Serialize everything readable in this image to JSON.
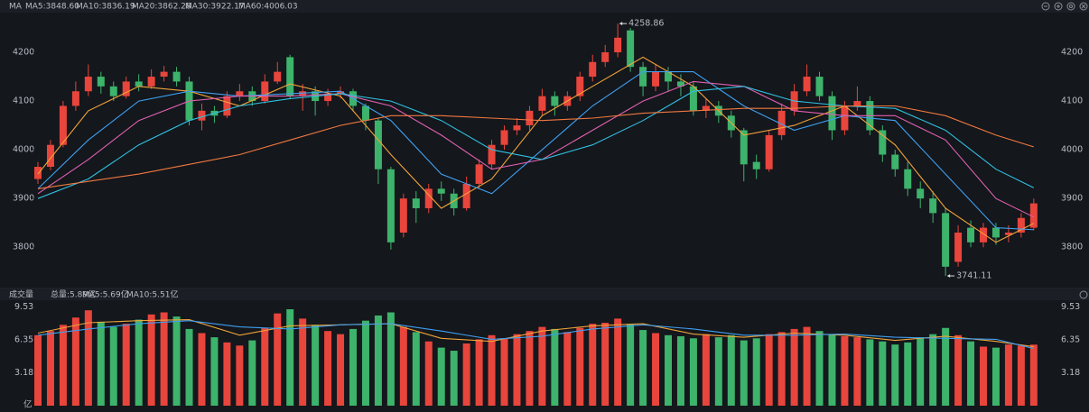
{
  "chart_data": {
    "type": "candlestick",
    "title": "MA",
    "up_color": "#e8453c",
    "down_color": "#3db36b",
    "ylim": [
      3719,
      4274
    ],
    "yticks": [
      3800,
      3900,
      4000,
      4100,
      4200
    ],
    "open": [
      3940,
      3965,
      4010,
      4090,
      4120,
      4150,
      4130,
      4110,
      4140,
      4130,
      4150,
      4160,
      4140,
      4060,
      4080,
      4070,
      4110,
      4120,
      4100,
      4140,
      4190,
      4110,
      4120,
      4100,
      4115,
      4120,
      4090,
      4060,
      3960,
      3830,
      3900,
      3880,
      3920,
      3910,
      3880,
      3930,
      3970,
      4010,
      4040,
      4050,
      4080,
      4110,
      4090,
      4110,
      4150,
      4180,
      4200,
      4245,
      4170,
      4130,
      4160,
      4140,
      4130,
      4080,
      4090,
      4070,
      4040,
      3975,
      3960,
      4030,
      4080,
      4120,
      4150,
      4110,
      4040,
      4090,
      4100,
      4040,
      3990,
      3960,
      3920,
      3900,
      3870,
      3770,
      3840,
      3810,
      3840,
      3825,
      3830,
      3840
    ],
    "high": [
      3975,
      4020,
      4100,
      4140,
      4175,
      4160,
      4140,
      4150,
      4155,
      4165,
      4172,
      4170,
      4150,
      4095,
      4090,
      4120,
      4135,
      4130,
      4155,
      4180,
      4195,
      4135,
      4130,
      4125,
      4130,
      4125,
      4095,
      4065,
      3965,
      3910,
      3915,
      3930,
      3935,
      3920,
      3945,
      3980,
      4020,
      4050,
      4065,
      4090,
      4125,
      4120,
      4120,
      4160,
      4195,
      4215,
      4258.86,
      4250,
      4180,
      4175,
      4170,
      4155,
      4140,
      4105,
      4100,
      4080,
      4045,
      3990,
      4040,
      4095,
      4135,
      4175,
      4160,
      4120,
      4100,
      4130,
      4110,
      4050,
      4000,
      3975,
      3935,
      3915,
      3880,
      3845,
      3855,
      3850,
      3850,
      3845,
      3870,
      3900
    ],
    "low": [
      3930,
      3958,
      4005,
      4080,
      4110,
      4115,
      4100,
      4105,
      4120,
      4125,
      4140,
      4130,
      4050,
      4040,
      4055,
      4065,
      4100,
      4090,
      4095,
      4135,
      4105,
      4080,
      4070,
      4090,
      4105,
      4080,
      4040,
      3930,
      3795,
      3820,
      3850,
      3870,
      3895,
      3865,
      3875,
      3920,
      3960,
      4000,
      4030,
      4040,
      4070,
      4070,
      4080,
      4100,
      4140,
      4170,
      4190,
      4160,
      4110,
      4120,
      4120,
      4110,
      4070,
      4065,
      4055,
      4025,
      3935,
      3940,
      3955,
      4020,
      4070,
      4110,
      4100,
      4020,
      4030,
      4080,
      4030,
      3975,
      3945,
      3905,
      3880,
      3850,
      3741.11,
      3760,
      3800,
      3800,
      3805,
      3810,
      3820,
      3835
    ],
    "close": [
      3965,
      4010,
      4090,
      4120,
      4150,
      4130,
      4110,
      4140,
      4130,
      4150,
      4160,
      4140,
      4060,
      4080,
      4070,
      4110,
      4120,
      4100,
      4140,
      4160,
      4110,
      4120,
      4100,
      4115,
      4120,
      4090,
      4060,
      3960,
      3810,
      3900,
      3880,
      3920,
      3910,
      3880,
      3930,
      3970,
      4010,
      4040,
      4050,
      4080,
      4110,
      4090,
      4110,
      4150,
      4180,
      4200,
      4230,
      4170,
      4130,
      4160,
      4140,
      4130,
      4080,
      4090,
      4070,
      4040,
      3970,
      3960,
      4030,
      4080,
      4120,
      4150,
      4110,
      4040,
      4090,
      4100,
      4040,
      3990,
      3960,
      3920,
      3900,
      3870,
      3760,
      3830,
      3810,
      3840,
      3820,
      3830,
      3860,
      3890
    ],
    "overlay_x": [
      0,
      4,
      8,
      12,
      16,
      20,
      24,
      28,
      32,
      36,
      40,
      44,
      48,
      52,
      56,
      60,
      64,
      68,
      72,
      76,
      79
    ],
    "overlays": [
      {
        "name": "MA5:3848.60",
        "color": "#f0a33a",
        "values": [
          3950,
          4080,
          4130,
          4120,
          4090,
          4135,
          4110,
          3990,
          3880,
          3940,
          4070,
          4130,
          4190,
          4130,
          4030,
          4050,
          4090,
          4010,
          3880,
          3810,
          3849
        ]
      },
      {
        "name": "MA10:3836.19",
        "color": "#3f9ff0",
        "values": [
          3920,
          4020,
          4100,
          4120,
          4110,
          4115,
          4120,
          4060,
          3950,
          3910,
          4000,
          4090,
          4160,
          4160,
          4090,
          4040,
          4070,
          4060,
          3950,
          3840,
          3836
        ]
      },
      {
        "name": "MA20:3862.28",
        "color": "#e060b0",
        "values": [
          3910,
          3980,
          4060,
          4100,
          4110,
          4110,
          4115,
          4090,
          4030,
          3960,
          3980,
          4040,
          4100,
          4140,
          4130,
          4080,
          4070,
          4070,
          4020,
          3900,
          3862
        ]
      },
      {
        "name": "MA30:3922.17",
        "color": "#30c0e0",
        "values": [
          3900,
          3940,
          4010,
          4060,
          4090,
          4105,
          4115,
          4100,
          4060,
          4000,
          3980,
          4010,
          4060,
          4120,
          4130,
          4100,
          4090,
          4085,
          4040,
          3960,
          3922
        ]
      },
      {
        "name": "MA60:4006.03",
        "color": "#f07840",
        "values": [
          3920,
          3935,
          3950,
          3970,
          3990,
          4020,
          4050,
          4070,
          4070,
          4065,
          4060,
          4065,
          4075,
          4080,
          4085,
          4085,
          4090,
          4090,
          4070,
          4030,
          4006
        ]
      }
    ],
    "volume": {
      "title": "成交量",
      "total_label": "总量:5.89亿",
      "total_color": "#e8453c",
      "unit": "亿",
      "ylim": [
        0,
        10
      ],
      "yticks": [
        9.53,
        6.35,
        3.18
      ],
      "values": [
        6.8,
        7.2,
        7.8,
        8.5,
        9.2,
        8.1,
        7.6,
        7.9,
        8.3,
        8.8,
        9.0,
        8.6,
        7.4,
        7.0,
        6.6,
        6.1,
        5.8,
        6.3,
        7.5,
        8.9,
        9.3,
        8.4,
        7.8,
        7.2,
        6.9,
        7.4,
        8.2,
        8.7,
        9.0,
        7.6,
        7.1,
        6.2,
        5.6,
        5.3,
        6.0,
        6.4,
        6.8,
        6.5,
        6.9,
        7.2,
        7.6,
        7.4,
        7.1,
        7.5,
        7.9,
        8.0,
        8.4,
        7.9,
        7.3,
        7.0,
        6.8,
        6.7,
        6.5,
        6.9,
        6.6,
        6.8,
        6.3,
        6.5,
        6.9,
        7.1,
        7.4,
        7.6,
        7.2,
        6.9,
        6.7,
        6.6,
        6.4,
        6.2,
        5.9,
        6.1,
        6.6,
        6.9,
        7.5,
        6.8,
        6.2,
        5.7,
        5.6,
        5.9,
        5.8,
        5.89
      ],
      "overlays": [
        {
          "name": "MA5:5.69亿",
          "color": "#f0a33a",
          "values": [
            7.0,
            8.0,
            8.2,
            8.3,
            6.8,
            7.7,
            7.8,
            7.9,
            6.5,
            6.2,
            7.2,
            7.7,
            7.9,
            6.9,
            6.6,
            7.0,
            6.8,
            6.3,
            6.7,
            6.2,
            5.69
          ]
        },
        {
          "name": "MA10:5.51亿",
          "color": "#3f9ff0",
          "values": [
            6.8,
            7.4,
            7.9,
            8.2,
            7.6,
            7.4,
            7.8,
            7.9,
            7.2,
            6.4,
            6.7,
            7.4,
            7.8,
            7.4,
            6.8,
            6.8,
            6.9,
            6.6,
            6.5,
            6.4,
            5.51
          ]
        }
      ]
    }
  }
}
